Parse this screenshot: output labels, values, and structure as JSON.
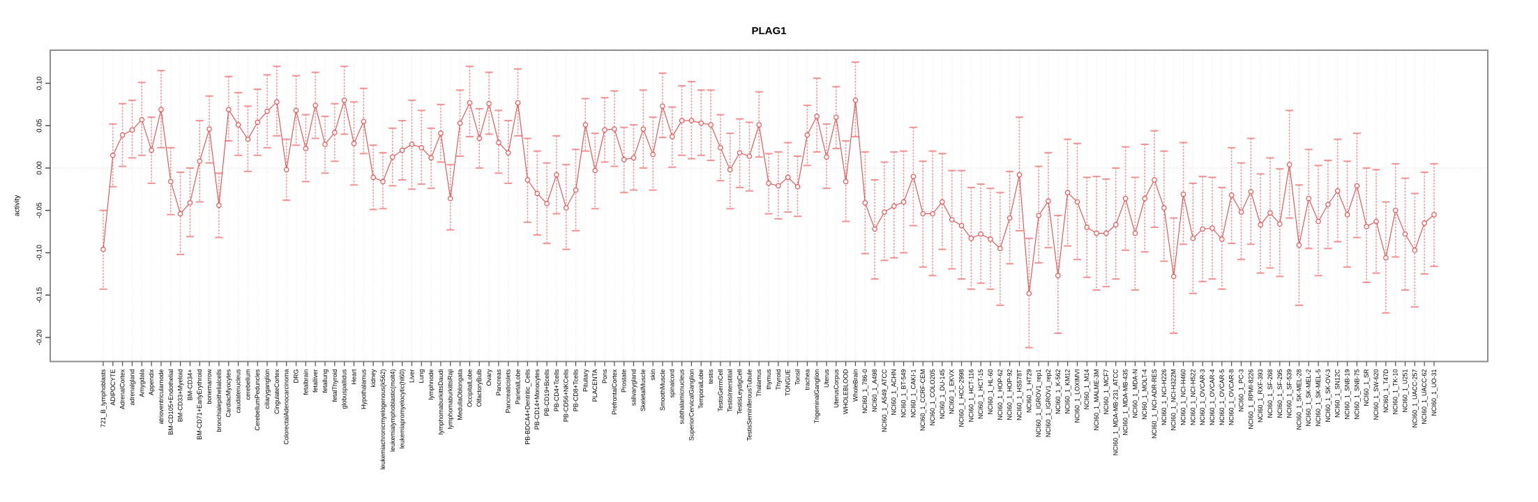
{
  "page": {
    "background": "#ffffff"
  },
  "chart_data": {
    "type": "line",
    "title": "PLAG1",
    "ylabel": "activity",
    "xlabel": "",
    "legend": "none",
    "marker": "open-circle",
    "error_bars": true,
    "grid": "dotted vertical gridline per category; dotted horizontal line at 0",
    "ylim": [
      -0.228,
      0.139
    ],
    "yticks": [
      0.1,
      0.05,
      0.0,
      -0.05,
      -0.1,
      -0.15,
      -0.2
    ],
    "colors": {
      "series": "#e84a4a",
      "error_bar": "#f59090",
      "grid": "#e6e6e6",
      "zero_line": "#dcdcdc",
      "axis_box": "#8c8c8c",
      "tick": "#4d4d4d",
      "text": "#000000"
    },
    "categories": [
      "721_B_lymphoblasts",
      "ADIPOCYTE",
      "AdrenalCortex",
      "adrenalgland",
      "Amygdala",
      "Appendix",
      "atrioventricularnode",
      "BM-CD105+Endothelial",
      "BM-CD33+Myeloid",
      "BM-CD34+",
      "BM-CD71+EarlyErythroid",
      "bonemarrow",
      "bronchialepithelialcells",
      "CardiacMyocytes",
      "caudatenucleus",
      "cerebellum",
      "CerebellumPeduncles",
      "ciliaryganglion",
      "CingulateCortex",
      "ColorectalAdenocarcinoma",
      "DRG",
      "fetalbrain",
      "fetalliver",
      "fetallung",
      "fetalThyroid",
      "globuspallidus",
      "Heart",
      "Hypothalamus",
      "kidney",
      "leukemiachronicmyelogenous(k562)",
      "leukemialymphoblastic(molt4)",
      "leukemiapromyelocytic(hl60)",
      "Liver",
      "Lung",
      "lymphnode",
      "lymphomaburkittsDaudi",
      "lymphomaburkittsRaji",
      "MedullaOblongata",
      "OccipitalLobe",
      "OlfactoryBulb",
      "Ovary",
      "Pancreas",
      "Pancreaticislets",
      "ParietalLobe",
      "PB-BDCA4+Dentritic_Cells",
      "PB-CD14+Monocytes",
      "PB-CD19+Bcells",
      "PB-CD4+Tcells",
      "PB-CD56+NKCells",
      "PB-CD8+Tcells",
      "Pituitary",
      "PLACENTA",
      "Pons",
      "PrefrontalCortex",
      "Prostate",
      "salivarygland",
      "SkeletalMuscle",
      "skin",
      "SmoothMuscle",
      "spinalcord",
      "subthalamicnucleus",
      "SuperiorCervicalGanglion",
      "TemporalLobe",
      "testis",
      "TestisGermCell",
      "TestisInterstitial",
      "TestisLeydigCell",
      "TestisSeminiferousTubule",
      "Thalamus",
      "thymus",
      "Thyroid",
      "TONGUE",
      "Tonsil",
      "trachea",
      "TrigeminalGanglion",
      "Uterus",
      "UterusCorpus",
      "WHOLEBLOOD",
      "WholeBrain",
      "NCI60_1_786-0",
      "NCI60_1_A498",
      "NCI60_1_A549_ATCC",
      "NCI60_1_ACHN",
      "NCI60_1_BT-549",
      "NCI60_1_CAKI-1",
      "NCI60_1_CCRF-CEM",
      "NCI60_1_COLO205",
      "NCI60_1_DU-145",
      "NCI60_1_EKVX",
      "NCI60_1_HCC-2998",
      "NCI60_1_HCT-116",
      "NCI60_1_HCT-15",
      "NCI60_1_HL-60",
      "NCI60_1_HOP-62",
      "NCI60_1_HOP-92",
      "NCI60_1_HS578T",
      "NCI60_1_HT29",
      "NCI60_1_IGROV1_rep1",
      "NCI60_1_IGROV1_rep2",
      "NCI60_1_K-562",
      "NCI60_1_KM12",
      "NCI60_1_LOXIMVI",
      "NCI60_1_M14",
      "NCI60_1_MALME-3M",
      "NCI60_1_MCF7",
      "NCI60_1_MDA-MB-231_ATCC",
      "NCI60_1_MDA-MB-435",
      "NCI60_1_MDA-N",
      "NCI60_1_MOLT-4",
      "NCI60_1_NCI-ADR-RES",
      "NCI60_1_NCI-H226",
      "NCI60_1_NCI-H322M",
      "NCI60_1_NCI-H460",
      "NCI60_1_NCI-H522",
      "NCI60_1_OVCAR-3",
      "NCI60_1_OVCAR-4",
      "NCI60_1_OVCAR-5",
      "NCI60_1_OVCAR-8",
      "NCI60_1_PC-3",
      "NCI60_1_RPMI-8226",
      "NCI60_1_RXF-393",
      "NCI60_1_SF-268",
      "NCI60_1_SF-295",
      "NCI60_1_SF-539",
      "NCI60_1_SK-MEL-28",
      "NCI60_1_SK-MEL-2",
      "NCI60_1_SK-MEL-5",
      "NCI60_1_SK-OV-3",
      "NCI60_1_SN12C",
      "NCI60_1_SNB-19",
      "NCI60_1_SNB-75",
      "NCI60_1_SR",
      "NCI60_1_SW-620",
      "NCI60_1_T47D",
      "NCI60_1_TK-10",
      "NCI60_1_U251",
      "NCI60_1_UACC-257",
      "NCI60_1_UACC-62",
      "NCI60_1_UO-31"
    ],
    "series": [
      {
        "name": "activity",
        "values": [
          -0.096,
          0.015,
          0.039,
          0.045,
          0.057,
          0.021,
          0.069,
          -0.016,
          -0.054,
          -0.041,
          0.008,
          0.046,
          -0.044,
          0.069,
          0.051,
          0.034,
          0.054,
          0.067,
          0.078,
          -0.002,
          0.068,
          0.023,
          0.074,
          0.028,
          0.042,
          0.08,
          0.029,
          0.055,
          -0.011,
          -0.016,
          0.013,
          0.021,
          0.028,
          0.024,
          0.012,
          0.041,
          -0.036,
          0.053,
          0.077,
          0.035,
          0.076,
          0.03,
          0.018,
          0.077,
          -0.014,
          -0.03,
          -0.042,
          -0.008,
          -0.047,
          -0.026,
          0.051,
          -0.003,
          0.045,
          0.046,
          0.01,
          0.012,
          0.046,
          0.016,
          0.073,
          0.037,
          0.056,
          0.056,
          0.053,
          0.051,
          0.024,
          -0.002,
          0.018,
          0.014,
          0.051,
          -0.018,
          -0.021,
          -0.011,
          -0.022,
          0.039,
          0.061,
          0.013,
          0.06,
          -0.016,
          0.08,
          -0.041,
          -0.072,
          -0.052,
          -0.045,
          -0.04,
          -0.01,
          -0.054,
          -0.054,
          -0.04,
          -0.061,
          -0.068,
          -0.083,
          -0.078,
          -0.084,
          -0.095,
          -0.059,
          -0.008,
          -0.148,
          -0.056,
          -0.039,
          -0.127,
          -0.029,
          -0.04,
          -0.07,
          -0.077,
          -0.077,
          -0.067,
          -0.036,
          -0.077,
          -0.036,
          -0.014,
          -0.047,
          -0.128,
          -0.031,
          -0.083,
          -0.072,
          -0.071,
          -0.084,
          -0.032,
          -0.052,
          -0.028,
          -0.067,
          -0.053,
          -0.066,
          0.004,
          -0.091,
          -0.036,
          -0.063,
          -0.043,
          -0.027,
          -0.055,
          -0.021,
          -0.069,
          -0.063,
          -0.106,
          -0.05,
          -0.078,
          -0.097,
          -0.065,
          -0.055
        ],
        "err_lo": [
          -0.143,
          -0.022,
          0.002,
          0.012,
          0.015,
          -0.018,
          0.024,
          -0.055,
          -0.102,
          -0.081,
          -0.04,
          0.006,
          -0.082,
          0.032,
          0.015,
          -0.004,
          0.015,
          0.024,
          0.038,
          -0.038,
          0.027,
          -0.016,
          0.035,
          -0.006,
          0.008,
          0.04,
          -0.02,
          0.017,
          -0.049,
          -0.048,
          -0.021,
          -0.014,
          -0.025,
          -0.019,
          -0.024,
          0.007,
          -0.073,
          0.014,
          0.037,
          0.0,
          0.04,
          -0.006,
          -0.018,
          0.038,
          -0.064,
          -0.079,
          -0.089,
          -0.054,
          -0.096,
          -0.074,
          0.02,
          -0.048,
          0.007,
          0.002,
          -0.029,
          -0.026,
          0.0,
          -0.026,
          0.036,
          0.001,
          0.015,
          0.011,
          0.015,
          0.009,
          -0.015,
          -0.048,
          -0.023,
          -0.027,
          0.013,
          -0.054,
          -0.06,
          -0.052,
          -0.057,
          0.003,
          0.019,
          -0.024,
          0.023,
          -0.063,
          0.037,
          -0.101,
          -0.131,
          -0.109,
          -0.106,
          -0.1,
          -0.068,
          -0.117,
          -0.127,
          -0.096,
          -0.119,
          -0.131,
          -0.143,
          -0.136,
          -0.143,
          -0.162,
          -0.113,
          -0.074,
          -0.212,
          -0.112,
          -0.094,
          -0.195,
          -0.092,
          -0.108,
          -0.129,
          -0.144,
          -0.14,
          -0.131,
          -0.097,
          -0.144,
          -0.099,
          -0.07,
          -0.11,
          -0.195,
          -0.09,
          -0.148,
          -0.134,
          -0.131,
          -0.143,
          -0.089,
          -0.108,
          -0.09,
          -0.124,
          -0.118,
          -0.128,
          -0.059,
          -0.162,
          -0.095,
          -0.127,
          -0.095,
          -0.087,
          -0.117,
          -0.082,
          -0.135,
          -0.124,
          -0.171,
          -0.105,
          -0.144,
          -0.164,
          -0.125,
          -0.116
        ],
        "err_hi": [
          -0.05,
          0.052,
          0.076,
          0.08,
          0.101,
          0.06,
          0.115,
          0.024,
          -0.005,
          0.0,
          0.056,
          0.085,
          -0.006,
          0.108,
          0.089,
          0.073,
          0.093,
          0.11,
          0.12,
          0.034,
          0.109,
          0.063,
          0.113,
          0.061,
          0.076,
          0.12,
          0.078,
          0.094,
          0.027,
          0.018,
          0.047,
          0.056,
          0.08,
          0.068,
          0.047,
          0.075,
          0.004,
          0.092,
          0.12,
          0.07,
          0.113,
          0.068,
          0.056,
          0.117,
          0.035,
          0.02,
          0.006,
          0.038,
          0.004,
          0.022,
          0.082,
          0.041,
          0.083,
          0.091,
          0.048,
          0.051,
          0.092,
          0.06,
          0.112,
          0.072,
          0.097,
          0.102,
          0.092,
          0.092,
          0.063,
          0.041,
          0.058,
          0.054,
          0.09,
          0.017,
          0.019,
          0.03,
          0.014,
          0.074,
          0.106,
          0.052,
          0.096,
          0.032,
          0.125,
          0.019,
          -0.014,
          0.007,
          0.019,
          0.02,
          0.048,
          0.008,
          0.02,
          0.017,
          -0.003,
          -0.003,
          -0.023,
          -0.019,
          -0.024,
          -0.029,
          -0.004,
          0.06,
          -0.083,
          0.002,
          0.018,
          -0.056,
          0.034,
          0.029,
          -0.011,
          -0.01,
          -0.013,
          0.0,
          0.025,
          -0.011,
          0.028,
          0.044,
          0.02,
          -0.059,
          0.03,
          -0.018,
          -0.01,
          -0.011,
          -0.023,
          0.024,
          0.006,
          0.035,
          -0.007,
          0.012,
          -0.001,
          0.068,
          -0.02,
          0.022,
          0.003,
          0.009,
          0.034,
          0.008,
          0.041,
          0.0,
          -0.002,
          -0.04,
          0.005,
          -0.012,
          -0.03,
          -0.005,
          0.005
        ]
      }
    ]
  }
}
